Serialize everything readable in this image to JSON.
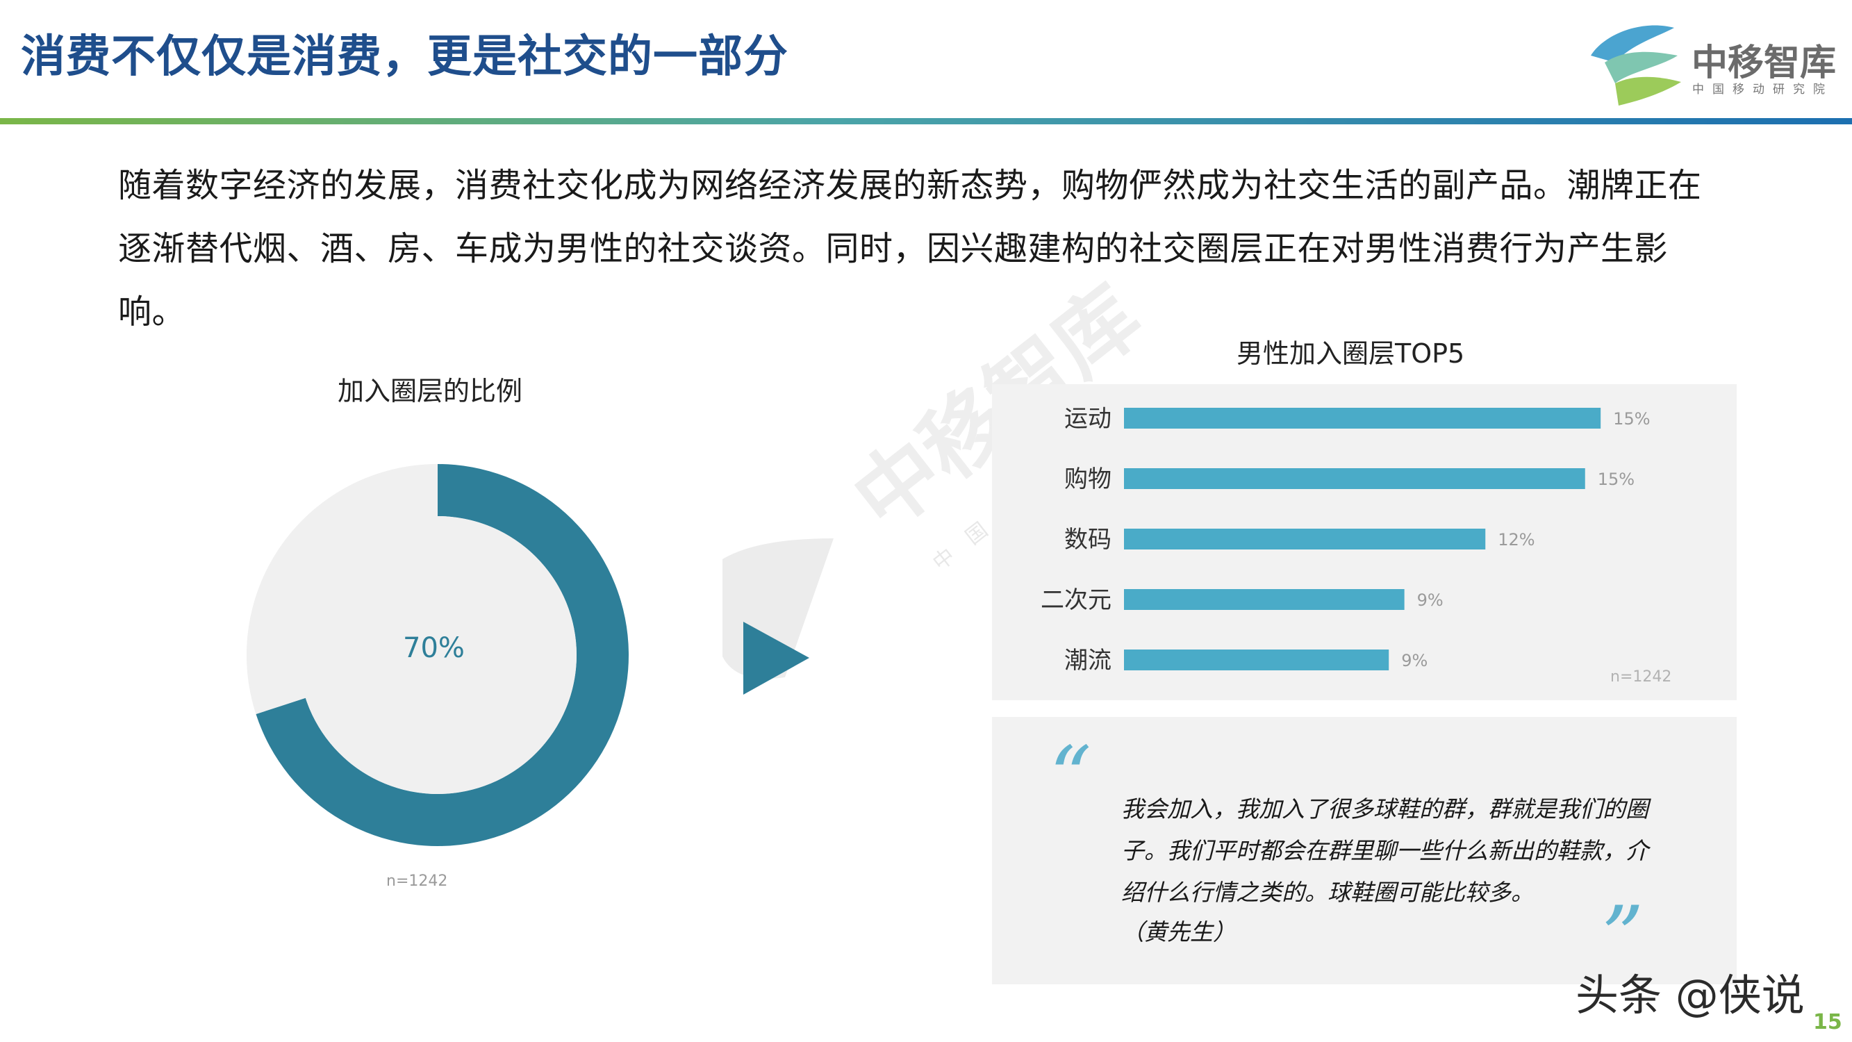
{
  "header": {
    "title": "消费不仅仅是消费，更是社交的一部分",
    "logo_name": "中移智库",
    "logo_sub": "中国移动研究院"
  },
  "intro_text": "随着数字经济的发展，消费社交化成为网络经济发展的新态势，购物俨然成为社交生活的副产品。潮牌正在逐渐替代烟、酒、房、车成为男性的社交谈资。同时，因兴趣建构的社交圈层正在对男性消费行为产生影响。",
  "watermark": {
    "text": "中移智库",
    "sub": "中国移动研究院"
  },
  "quote": {
    "open_mark": "“",
    "close_mark": "”",
    "text": "我会加入，我加入了很多球鞋的群，群就是我们的圈子。我们平时都会在群里聊一些什么新出的鞋款，介绍什么行情之类的。球鞋圈可能比较多。",
    "author": "（黄先生）"
  },
  "footer": {
    "credit": "头条 @侠说",
    "page_number": "15"
  },
  "colors": {
    "title": "#1f4e8c",
    "donut_filled": "#2e7f99",
    "donut_empty": "#f0f0f0",
    "bar": "#4aabc8",
    "arrow": "#2e7f99",
    "panel": "#f2f2f2",
    "quote_mark": "#62b3cf",
    "page_number": "#7ab648"
  },
  "chart_data": [
    {
      "type": "pie",
      "title": "加入圈层的比例",
      "style": "donut",
      "values": [
        70,
        30
      ],
      "center_label": "70%",
      "note": "n=1242"
    },
    {
      "type": "bar",
      "orientation": "horizontal",
      "title": "男性加入圈层TOP5",
      "categories": [
        "运动",
        "购物",
        "数码",
        "二次元",
        "潮流"
      ],
      "values": [
        15.3,
        14.8,
        11.6,
        9.0,
        8.5
      ],
      "data_labels": [
        "15%",
        "15%",
        "12%",
        "9%",
        "9%"
      ],
      "note": "n=1242"
    }
  ]
}
